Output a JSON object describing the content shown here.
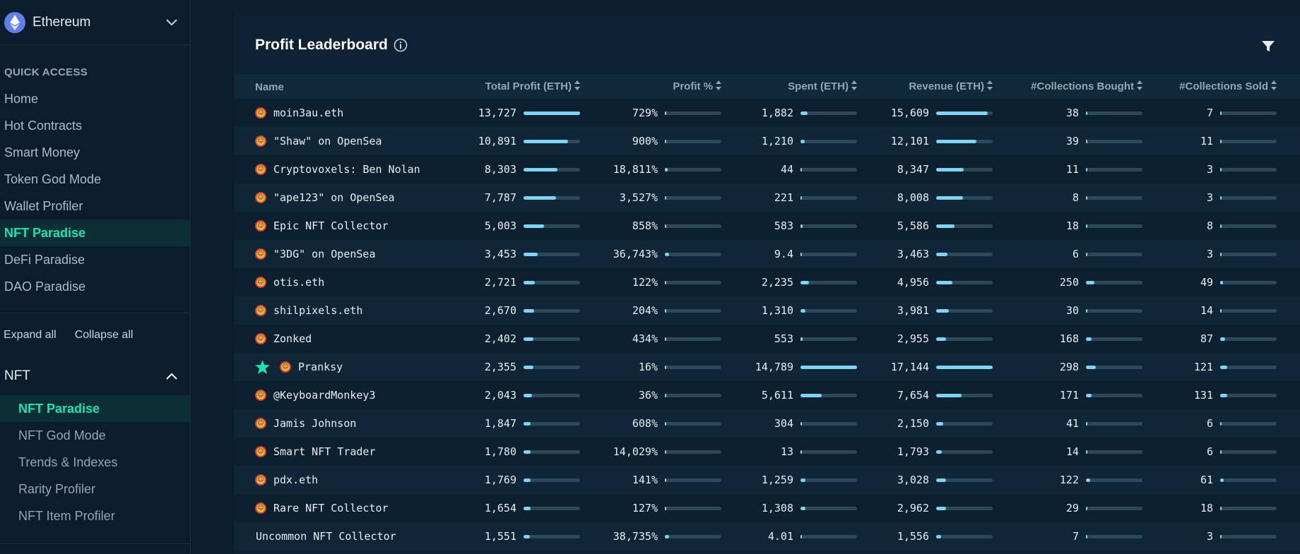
{
  "sidebar": {
    "chain": "Ethereum",
    "quick_access_label": "QUICK ACCESS",
    "quick_access": [
      {
        "label": "Home",
        "active": false
      },
      {
        "label": "Hot Contracts",
        "active": false
      },
      {
        "label": "Smart Money",
        "active": false
      },
      {
        "label": "Token God Mode",
        "active": false
      },
      {
        "label": "Wallet Profiler",
        "active": false
      },
      {
        "label": "NFT Paradise",
        "active": true
      },
      {
        "label": "DeFi Paradise",
        "active": false
      },
      {
        "label": "DAO Paradise",
        "active": false
      }
    ],
    "expand_all": "Expand all",
    "collapse_all": "Collapse all",
    "group": {
      "label": "NFT",
      "items": [
        {
          "label": "NFT Paradise",
          "active": true
        },
        {
          "label": "NFT God Mode",
          "active": false
        },
        {
          "label": "Trends & Indexes",
          "active": false
        },
        {
          "label": "Rarity Profiler",
          "active": false
        },
        {
          "label": "NFT Item Profiler",
          "active": false
        }
      ]
    }
  },
  "panel": {
    "title": "Profit Leaderboard",
    "columns": {
      "name": "Name",
      "total_profit": "Total Profit (ETH)",
      "profit_pct": "Profit %",
      "spent": "Spent (ETH)",
      "revenue": "Revenue (ETH)",
      "collections_bought": "#Collections Bought",
      "collections_sold": "#Collections Sold"
    },
    "rows": [
      {
        "name": "moin3au.eth",
        "avatar": true,
        "starred": false,
        "total_profit": "13,727",
        "total_profit_frac": 1.0,
        "profit_pct": "729%",
        "profit_pct_frac": 0.02,
        "spent": "1,882",
        "spent_frac": 0.13,
        "revenue": "15,609",
        "revenue_frac": 0.91,
        "bought": "38",
        "bought_frac": 0.03,
        "sold": "7",
        "sold_frac": 0.02
      },
      {
        "name": "\"Shaw\" on OpenSea",
        "avatar": true,
        "starred": false,
        "total_profit": "10,891",
        "total_profit_frac": 0.79,
        "profit_pct": "900%",
        "profit_pct_frac": 0.02,
        "spent": "1,210",
        "spent_frac": 0.08,
        "revenue": "12,101",
        "revenue_frac": 0.71,
        "bought": "39",
        "bought_frac": 0.03,
        "sold": "11",
        "sold_frac": 0.02
      },
      {
        "name": "Cryptovoxels: Ben Nolan",
        "avatar": true,
        "starred": false,
        "total_profit": "8,303",
        "total_profit_frac": 0.6,
        "profit_pct": "18,811%",
        "profit_pct_frac": 0.05,
        "spent": "44",
        "spent_frac": 0.01,
        "revenue": "8,347",
        "revenue_frac": 0.49,
        "bought": "11",
        "bought_frac": 0.01,
        "sold": "3",
        "sold_frac": 0.01
      },
      {
        "name": "\"ape123\" on OpenSea",
        "avatar": true,
        "starred": false,
        "total_profit": "7,787",
        "total_profit_frac": 0.57,
        "profit_pct": "3,527%",
        "profit_pct_frac": 0.01,
        "spent": "221",
        "spent_frac": 0.02,
        "revenue": "8,008",
        "revenue_frac": 0.47,
        "bought": "8",
        "bought_frac": 0.01,
        "sold": "3",
        "sold_frac": 0.01
      },
      {
        "name": "Epic NFT Collector",
        "avatar": true,
        "starred": false,
        "total_profit": "5,003",
        "total_profit_frac": 0.36,
        "profit_pct": "858%",
        "profit_pct_frac": 0.02,
        "spent": "583",
        "spent_frac": 0.04,
        "revenue": "5,586",
        "revenue_frac": 0.33,
        "bought": "18",
        "bought_frac": 0.02,
        "sold": "8",
        "sold_frac": 0.02
      },
      {
        "name": "\"3DG\" on OpenSea",
        "avatar": true,
        "starred": false,
        "total_profit": "3,453",
        "total_profit_frac": 0.25,
        "profit_pct": "36,743%",
        "profit_pct_frac": 0.07,
        "spent": "9.4",
        "spent_frac": 0.01,
        "revenue": "3,463",
        "revenue_frac": 0.2,
        "bought": "6",
        "bought_frac": 0.01,
        "sold": "3",
        "sold_frac": 0.01
      },
      {
        "name": "otis.eth",
        "avatar": true,
        "starred": false,
        "total_profit": "2,721",
        "total_profit_frac": 0.2,
        "profit_pct": "122%",
        "profit_pct_frac": 0.01,
        "spent": "2,235",
        "spent_frac": 0.15,
        "revenue": "4,956",
        "revenue_frac": 0.29,
        "bought": "250",
        "bought_frac": 0.15,
        "sold": "49",
        "sold_frac": 0.05
      },
      {
        "name": "shilpixels.eth",
        "avatar": true,
        "starred": false,
        "total_profit": "2,670",
        "total_profit_frac": 0.19,
        "profit_pct": "204%",
        "profit_pct_frac": 0.01,
        "spent": "1,310",
        "spent_frac": 0.09,
        "revenue": "3,981",
        "revenue_frac": 0.23,
        "bought": "30",
        "bought_frac": 0.02,
        "sold": "14",
        "sold_frac": 0.02
      },
      {
        "name": "Zonked",
        "avatar": true,
        "starred": false,
        "total_profit": "2,402",
        "total_profit_frac": 0.17,
        "profit_pct": "434%",
        "profit_pct_frac": 0.01,
        "spent": "553",
        "spent_frac": 0.04,
        "revenue": "2,955",
        "revenue_frac": 0.17,
        "bought": "168",
        "bought_frac": 0.1,
        "sold": "87",
        "sold_frac": 0.09
      },
      {
        "name": "Pranksy",
        "avatar": true,
        "starred": true,
        "total_profit": "2,355",
        "total_profit_frac": 0.17,
        "profit_pct": "16%",
        "profit_pct_frac": 0.0,
        "spent": "14,789",
        "spent_frac": 1.0,
        "revenue": "17,144",
        "revenue_frac": 1.0,
        "bought": "298",
        "bought_frac": 0.18,
        "sold": "121",
        "sold_frac": 0.12
      },
      {
        "name": "@KeyboardMonkey3",
        "avatar": true,
        "starred": false,
        "total_profit": "2,043",
        "total_profit_frac": 0.15,
        "profit_pct": "36%",
        "profit_pct_frac": 0.0,
        "spent": "5,611",
        "spent_frac": 0.38,
        "revenue": "7,654",
        "revenue_frac": 0.45,
        "bought": "171",
        "bought_frac": 0.1,
        "sold": "131",
        "sold_frac": 0.13
      },
      {
        "name": "Jamis Johnson",
        "avatar": true,
        "starred": false,
        "total_profit": "1,847",
        "total_profit_frac": 0.13,
        "profit_pct": "608%",
        "profit_pct_frac": 0.01,
        "spent": "304",
        "spent_frac": 0.02,
        "revenue": "2,150",
        "revenue_frac": 0.13,
        "bought": "41",
        "bought_frac": 0.03,
        "sold": "6",
        "sold_frac": 0.01
      },
      {
        "name": "Smart NFT Trader",
        "avatar": true,
        "starred": false,
        "total_profit": "1,780",
        "total_profit_frac": 0.13,
        "profit_pct": "14,029%",
        "profit_pct_frac": 0.03,
        "spent": "13",
        "spent_frac": 0.01,
        "revenue": "1,793",
        "revenue_frac": 0.1,
        "bought": "14",
        "bought_frac": 0.01,
        "sold": "6",
        "sold_frac": 0.01
      },
      {
        "name": "pdx.eth",
        "avatar": true,
        "starred": false,
        "total_profit": "1,769",
        "total_profit_frac": 0.13,
        "profit_pct": "141%",
        "profit_pct_frac": 0.01,
        "spent": "1,259",
        "spent_frac": 0.09,
        "revenue": "3,028",
        "revenue_frac": 0.18,
        "bought": "122",
        "bought_frac": 0.07,
        "sold": "61",
        "sold_frac": 0.06
      },
      {
        "name": "Rare NFT Collector",
        "avatar": true,
        "starred": false,
        "total_profit": "1,654",
        "total_profit_frac": 0.12,
        "profit_pct": "127%",
        "profit_pct_frac": 0.01,
        "spent": "1,308",
        "spent_frac": 0.09,
        "revenue": "2,962",
        "revenue_frac": 0.17,
        "bought": "29",
        "bought_frac": 0.02,
        "sold": "18",
        "sold_frac": 0.02
      },
      {
        "name": "Uncommon NFT Collector",
        "avatar": false,
        "starred": false,
        "total_profit": "1,551",
        "total_profit_frac": 0.11,
        "profit_pct": "38,735%",
        "profit_pct_frac": 0.08,
        "spent": "4.01",
        "spent_frac": 0.01,
        "revenue": "1,556",
        "revenue_frac": 0.09,
        "bought": "7",
        "bought_frac": 0.01,
        "sold": "3",
        "sold_frac": 0.01
      }
    ]
  },
  "colors": {
    "accent": "#1ee3b0",
    "bar": "#7fd4f5",
    "bar_track": "#2f4858",
    "background": "#0b1d2c",
    "panel": "#0e2233"
  },
  "icons": {
    "chain": "ethereum-icon",
    "chevron_down": "chevron-down-icon",
    "chevron_up": "chevron-up-icon",
    "info": "info-icon",
    "filter": "filter-icon",
    "sort": "sort-icon",
    "star": "star-icon",
    "avatar": "avatar-icon"
  }
}
